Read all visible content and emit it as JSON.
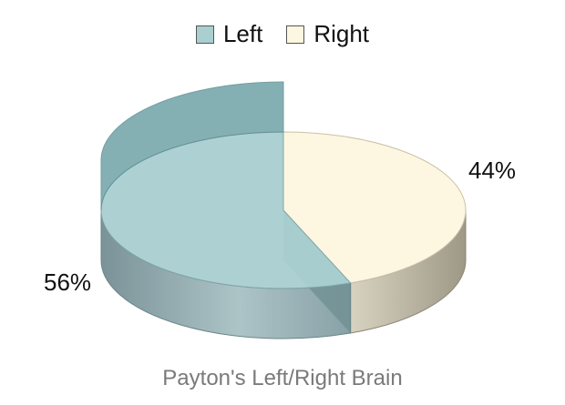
{
  "chart_data": {
    "type": "pie",
    "title": "Payton's Left/Right Brain",
    "categories": [
      "Left",
      "Right"
    ],
    "values": [
      56,
      44
    ],
    "labels": [
      "56%",
      "44%"
    ],
    "colors": {
      "Left": "#a9cfd0",
      "Right": "#fdf6e1"
    },
    "side_colors": {
      "Left": "#8eaab0",
      "Right": "#bcb5a2"
    },
    "legend": {
      "position": "top",
      "items": [
        {
          "label": "Left",
          "color": "#a9cfd0"
        },
        {
          "label": "Right",
          "color": "#fdf6e1"
        }
      ]
    },
    "style": "3d",
    "exploded": "Left"
  }
}
